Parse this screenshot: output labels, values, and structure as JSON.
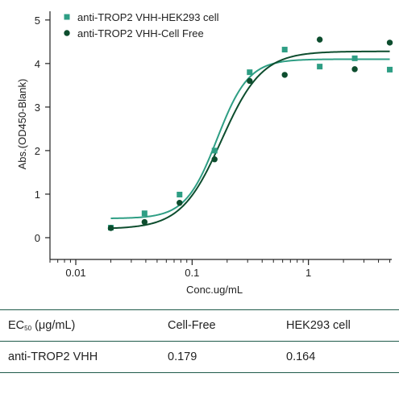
{
  "chart_data": {
    "type": "scatter",
    "xlabel": "Conc.ug/mL",
    "ylabel": "Abs.(OD450-Blank)",
    "xscale": "log",
    "xlim": [
      0.006,
      5.2
    ],
    "ylim": [
      -0.5,
      5.2
    ],
    "xticks": [
      0.01,
      0.1,
      1
    ],
    "xtick_labels": [
      "0.01",
      "0.1",
      "1"
    ],
    "yticks": [
      0,
      1,
      2,
      3,
      4,
      5
    ],
    "ytick_labels": [
      "0",
      "1",
      "2",
      "3",
      "4",
      "5"
    ],
    "grid": false,
    "legend_position": "top-left",
    "series": [
      {
        "name": "anti-TROP2 VHH-HEK293 cell",
        "marker": "square",
        "color": "#2e9e84",
        "x": [
          0.02,
          0.039,
          0.078,
          0.156,
          0.3125,
          0.625,
          1.25,
          2.5,
          5
        ],
        "y": [
          0.23,
          0.56,
          0.99,
          2.0,
          3.8,
          4.32,
          3.93,
          4.12,
          3.86
        ],
        "fit": {
          "bottom": 0.44,
          "top": 4.1,
          "ec50": 0.164,
          "hill": 3.2
        }
      },
      {
        "name": "anti-TROP2 VHH-Cell Free",
        "marker": "circle",
        "color": "#0d4d2e",
        "x": [
          0.02,
          0.039,
          0.078,
          0.156,
          0.3125,
          0.625,
          1.25,
          2.5,
          5
        ],
        "y": [
          0.22,
          0.36,
          0.8,
          1.8,
          3.6,
          3.74,
          4.55,
          3.87,
          4.48
        ],
        "fit": {
          "bottom": 0.2,
          "top": 4.28,
          "ec50": 0.179,
          "hill": 2.5
        }
      }
    ]
  },
  "table": {
    "header_prefix": "EC",
    "header_sub": "50",
    "header_suffix": " (μg/mL)",
    "col2_header": "Cell-Free",
    "col3_header": "HEK293 cell",
    "row_label": "anti-TROP2 VHH",
    "cell_free_value": "0.179",
    "hek293_value": "0.164"
  }
}
